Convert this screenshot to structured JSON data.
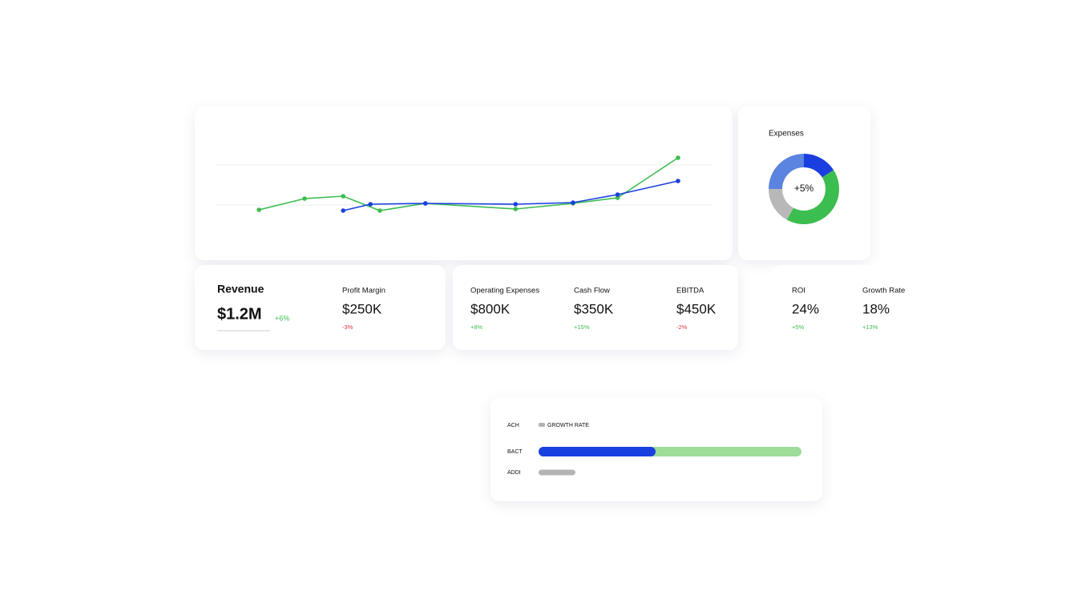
{
  "line_chart": {
    "type": "line",
    "xlim": [
      0,
      100
    ],
    "ylim": [
      0,
      100
    ],
    "yticks": [
      25,
      50
    ],
    "grid": true,
    "series": [
      {
        "color": "#3cbd4f",
        "x": [
          8.6,
          17.8,
          25.6,
          33,
          42.2,
          60.4,
          72,
          81,
          93.2
        ],
        "values": [
          22,
          29,
          30.5,
          21.5,
          26,
          22.5,
          26,
          29.5,
          54.5
        ]
      },
      {
        "color": "#1a3fe0",
        "x": [
          25.6,
          31.1,
          42.2,
          60.4,
          72,
          81,
          93.2
        ],
        "values": [
          21.5,
          25.5,
          26,
          25.5,
          26.5,
          31.5,
          40
        ]
      }
    ]
  },
  "donut": {
    "type": "donut",
    "title": "Expenses",
    "center_label": "+5%",
    "values": [
      16,
      42,
      17,
      25
    ],
    "colors": [
      "#1a3fe0",
      "#3cbd4f",
      "#b8b8b8",
      "#5b84e0"
    ]
  },
  "kpis": [
    {
      "label": "Revenue",
      "value": "$1.2M",
      "change": "+6%",
      "color": "#3cbd4f"
    },
    {
      "label": "Profit Margin",
      "value": "$250K",
      "change": "-3%",
      "color": "#e0303a"
    },
    {
      "label": "Operating Expenses",
      "value": "$800K",
      "change": "+8%",
      "color": "#3cbd4f"
    },
    {
      "label": "Cash Flow",
      "value": "$350K",
      "change": "+15%",
      "color": "#3cbd4f"
    },
    {
      "label": "EBITDA",
      "value": "$450K",
      "change": "-2%",
      "color": "#e0303a"
    },
    {
      "label": "ROI",
      "value": "24%",
      "change": "+5%",
      "color": "#3cbd4f"
    },
    {
      "label": "Growth Rate",
      "value": "18%",
      "change": "+13%",
      "color": "#3cbd4f"
    }
  ],
  "progress": {
    "type": "progress",
    "legend": "GROWTH RATE",
    "max": 100,
    "rows": [
      {
        "label": "ACH"
      },
      {
        "label": "BACT",
        "value": 44.5,
        "color": "#1a3fe0",
        "track": 100,
        "track_color": "#9edc9a"
      },
      {
        "label": "ADDI",
        "value": 14,
        "color": "#b4b4b4"
      }
    ]
  }
}
